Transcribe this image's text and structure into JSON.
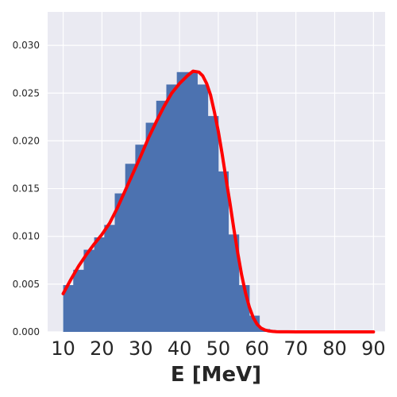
{
  "chart_data": {
    "type": "bar",
    "title": "",
    "xlabel": "E [MeV]",
    "ylabel": "",
    "xlim": [
      6,
      93
    ],
    "ylim": [
      0,
      0.0335
    ],
    "xticks": [
      {
        "value": 10,
        "label": "10"
      },
      {
        "value": 20,
        "label": "20"
      },
      {
        "value": 30,
        "label": "30"
      },
      {
        "value": 40,
        "label": "40"
      },
      {
        "value": 50,
        "label": "50"
      },
      {
        "value": 60,
        "label": "60"
      },
      {
        "value": 70,
        "label": "70"
      },
      {
        "value": 80,
        "label": "80"
      },
      {
        "value": 90,
        "label": "90"
      }
    ],
    "yticks": [
      {
        "value": 0.0,
        "label": "0.000"
      },
      {
        "value": 0.005,
        "label": "0.005"
      },
      {
        "value": 0.01,
        "label": "0.010"
      },
      {
        "value": 0.015,
        "label": "0.015"
      },
      {
        "value": 0.02,
        "label": "0.020"
      },
      {
        "value": 0.025,
        "label": "0.025"
      },
      {
        "value": 0.03,
        "label": "0.030"
      }
    ],
    "grid": true,
    "histogram": {
      "color": "#4c72b0",
      "bin_edges": [
        10,
        12.6,
        15.3,
        18,
        20.6,
        23.3,
        26,
        28.6,
        31.3,
        34,
        36.6,
        39.3,
        42,
        44.6,
        47.3,
        50,
        52.6,
        55.3,
        58,
        60.6,
        63.3,
        66
      ],
      "values": [
        0.0049,
        0.0065,
        0.0086,
        0.0099,
        0.0112,
        0.0145,
        0.0176,
        0.0196,
        0.0219,
        0.0242,
        0.0259,
        0.0272,
        0.0272,
        0.0259,
        0.0226,
        0.0168,
        0.0102,
        0.0049,
        0.0017,
        0.0003,
        0.0001
      ]
    },
    "curve": {
      "color": "#ff0000",
      "x": [
        10,
        12,
        14,
        16,
        18,
        20,
        22,
        24,
        26,
        28,
        30,
        32,
        34,
        36,
        38,
        40,
        42,
        43.5,
        45,
        46,
        47,
        48,
        49,
        50,
        51,
        52,
        53,
        54,
        55,
        56,
        57,
        58,
        59,
        60,
        61,
        62,
        63,
        64,
        65,
        66,
        68,
        70,
        75,
        80,
        85,
        90
      ],
      "y": [
        0.004,
        0.0055,
        0.0069,
        0.0081,
        0.0092,
        0.0102,
        0.0114,
        0.013,
        0.0148,
        0.0166,
        0.0184,
        0.0203,
        0.022,
        0.0236,
        0.025,
        0.026,
        0.0268,
        0.0273,
        0.0272,
        0.0268,
        0.026,
        0.0248,
        0.023,
        0.021,
        0.0186,
        0.016,
        0.0135,
        0.0108,
        0.0083,
        0.006,
        0.0041,
        0.0026,
        0.0015,
        0.0008,
        0.0004,
        0.0002,
        0.0001,
        5e-05,
        2e-05,
        1e-05,
        1e-05,
        0.0,
        0.0,
        0.0,
        0.0,
        0.0
      ]
    }
  }
}
